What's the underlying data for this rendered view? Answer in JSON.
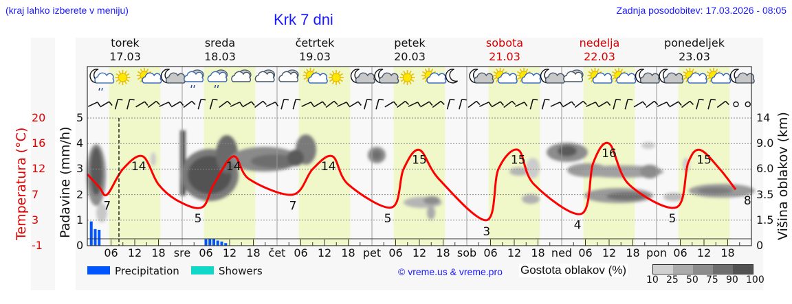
{
  "header": {
    "menu_hint": "(kraj lahko izberete v meniju)",
    "title": "Krk 7 dni",
    "last_update": "Zadnja posodobitev: 17.03.2026 - 08:05"
  },
  "days": [
    {
      "name": "torek",
      "date": "17.03",
      "weekend": false
    },
    {
      "name": "sreda",
      "date": "18.03",
      "weekend": false
    },
    {
      "name": "četrtek",
      "date": "19.03",
      "weekend": false
    },
    {
      "name": "petek",
      "date": "20.03",
      "weekend": false
    },
    {
      "name": "sobota",
      "date": "21.03",
      "weekend": true
    },
    {
      "name": "nedelja",
      "date": "22.03",
      "weekend": true
    },
    {
      "name": "ponedeljek",
      "date": "23.03",
      "weekend": false
    }
  ],
  "axes": {
    "left_temp_label": "Temperatura (°C)",
    "left_precip_label": "Padavine (mm/h)",
    "right_label": "Višina oblakov (km)",
    "temp_ticks": [
      "20",
      "16",
      "12",
      "7",
      "3",
      "-1"
    ],
    "precip_ticks": [
      "5",
      "4",
      "3",
      "2",
      "1",
      "0"
    ],
    "cloud_height_ticks": [
      "14",
      "9.0",
      "6.0",
      "3.5",
      "1.5",
      "0"
    ],
    "x_ticks": [
      "06",
      "12",
      "18",
      "sre",
      "06",
      "12",
      "18",
      "čet",
      "06",
      "12",
      "18",
      "pet",
      "06",
      "12",
      "18",
      "sob",
      "06",
      "12",
      "18",
      "ned",
      "06",
      "12",
      "18",
      "pon",
      "06",
      "12",
      "18"
    ]
  },
  "legend": {
    "precipitation": "Precipitation",
    "showers": "Showers",
    "copyright": "© vreme.us & vreme.pro",
    "cloud_density_title": "Gostota oblakov (%)",
    "cloud_density_ticks": [
      "10",
      "25",
      "50",
      "75",
      "90",
      "100"
    ],
    "cloud_density_colors": [
      "#d0d0d0",
      "#ababab",
      "#8c8c8c",
      "#6e6e6e",
      "#525252"
    ]
  },
  "colors": {
    "temperature": "#ff0000",
    "precipitation": "#0055ff",
    "showers": "#10d8c8",
    "daylight": "#f0f7c8",
    "night": "#f8f8f8",
    "accent_blue": "#1a1aff",
    "weekend_red": "#d40000"
  },
  "weather_icons": [
    "moon-cloud-drizzle",
    "sun",
    "sun-cloud",
    "moon-cloud",
    "cloud-drizzle",
    "cloud-drizzle",
    "cloud",
    "cloud",
    "cloud",
    "sun-cloud",
    "sun",
    "moon-cloud",
    "moon-cloud",
    "sun",
    "sun-cloud",
    "moon",
    "moon-cloud",
    "sun-cloud",
    "sun-cloud",
    "moon-cloud",
    "cloud",
    "sun-cloud",
    "sun-cloud",
    "moon-cloud",
    "moon-cloud",
    "sun-cloud",
    "sun-cloud",
    "moon-cloud"
  ],
  "chart_data": {
    "type": "line",
    "title": "Krk 7 dni",
    "xlabel": "",
    "ylabel": "Temperatura (°C) / Padavine (mm/h)",
    "y2label": "Višina oblakov (km)",
    "x_range": [
      "17.03 00:00",
      "24.03 00:00"
    ],
    "grid": true,
    "current_time_marker": "17.03 08:05",
    "series": [
      {
        "name": "Temperatura (°C)",
        "type": "line",
        "color": "#ff0000",
        "points": [
          {
            "t": "17.03 00:00",
            "v": 11
          },
          {
            "t": "17.03 03:00",
            "v": 8.5
          },
          {
            "t": "17.03 05:00",
            "v": 7
          },
          {
            "t": "17.03 09:00",
            "v": 12
          },
          {
            "t": "17.03 14:00",
            "v": 14
          },
          {
            "t": "17.03 18:00",
            "v": 9
          },
          {
            "t": "17.03 23:00",
            "v": 6
          },
          {
            "t": "18.03 05:00",
            "v": 5
          },
          {
            "t": "18.03 08:00",
            "v": 9
          },
          {
            "t": "18.03 13:00",
            "v": 14
          },
          {
            "t": "18.03 17:00",
            "v": 10
          },
          {
            "t": "19.03 04:00",
            "v": 7
          },
          {
            "t": "19.03 09:00",
            "v": 12
          },
          {
            "t": "19.03 14:00",
            "v": 14
          },
          {
            "t": "19.03 18:00",
            "v": 9
          },
          {
            "t": "20.03 05:00",
            "v": 5
          },
          {
            "t": "20.03 08:00",
            "v": 12
          },
          {
            "t": "20.03 12:00",
            "v": 15
          },
          {
            "t": "20.03 17:00",
            "v": 10
          },
          {
            "t": "21.03 05:00",
            "v": 3
          },
          {
            "t": "21.03 08:00",
            "v": 12
          },
          {
            "t": "21.03 13:00",
            "v": 15
          },
          {
            "t": "21.03 17:00",
            "v": 9
          },
          {
            "t": "22.03 05:00",
            "v": 4
          },
          {
            "t": "22.03 08:00",
            "v": 13
          },
          {
            "t": "22.03 12:00",
            "v": 16
          },
          {
            "t": "22.03 17:00",
            "v": 9
          },
          {
            "t": "23.03 05:00",
            "v": 5
          },
          {
            "t": "23.03 08:00",
            "v": 13
          },
          {
            "t": "23.03 11:00",
            "v": 15
          },
          {
            "t": "23.03 16:00",
            "v": 12
          },
          {
            "t": "23.03 20:00",
            "v": 8
          }
        ],
        "labels": [
          {
            "t": "17.03 05:00",
            "v": 7,
            "text": "7"
          },
          {
            "t": "17.03 13:00",
            "v": 14,
            "text": "14"
          },
          {
            "t": "18.03 04:00",
            "v": 5,
            "text": "5"
          },
          {
            "t": "18.03 13:00",
            "v": 14,
            "text": "14"
          },
          {
            "t": "19.03 04:00",
            "v": 7,
            "text": "7"
          },
          {
            "t": "19.03 13:00",
            "v": 14,
            "text": "14"
          },
          {
            "t": "20.03 04:00",
            "v": 5,
            "text": "5"
          },
          {
            "t": "20.03 12:00",
            "v": 15,
            "text": "15"
          },
          {
            "t": "21.03 05:00",
            "v": 3,
            "text": "3"
          },
          {
            "t": "21.03 13:00",
            "v": 15,
            "text": "15"
          },
          {
            "t": "22.03 04:00",
            "v": 4,
            "text": "4"
          },
          {
            "t": "22.03 12:00",
            "v": 16,
            "text": "16"
          },
          {
            "t": "23.03 04:00",
            "v": 5,
            "text": "5"
          },
          {
            "t": "23.03 12:00",
            "v": 15,
            "text": "15"
          },
          {
            "t": "23.03 23:00",
            "v": 8,
            "text": "8"
          }
        ]
      },
      {
        "name": "Precipitation (mm/h)",
        "type": "bar",
        "color": "#0055ff",
        "points": [
          {
            "t": "17.03 01:00",
            "v": 0.95
          },
          {
            "t": "17.03 02:00",
            "v": 0.65
          },
          {
            "t": "17.03 03:00",
            "v": 0.62
          },
          {
            "t": "18.03 06:00",
            "v": 0.25
          },
          {
            "t": "18.03 07:00",
            "v": 0.28
          },
          {
            "t": "18.03 08:00",
            "v": 0.28
          },
          {
            "t": "18.03 09:00",
            "v": 0.2
          },
          {
            "t": "18.03 10:00",
            "v": 0.16
          },
          {
            "t": "18.03 11:00",
            "v": 0.1
          }
        ]
      },
      {
        "name": "Showers (mm/h)",
        "type": "bar",
        "color": "#10d8c8",
        "points": []
      }
    ],
    "precip_ylim": [
      0,
      5
    ],
    "cloud_height_ticks_km": [
      0,
      1.5,
      3.5,
      6.0,
      9.0,
      14
    ],
    "temp_ticks_c": [
      -1,
      3,
      7,
      12,
      16,
      20
    ]
  }
}
